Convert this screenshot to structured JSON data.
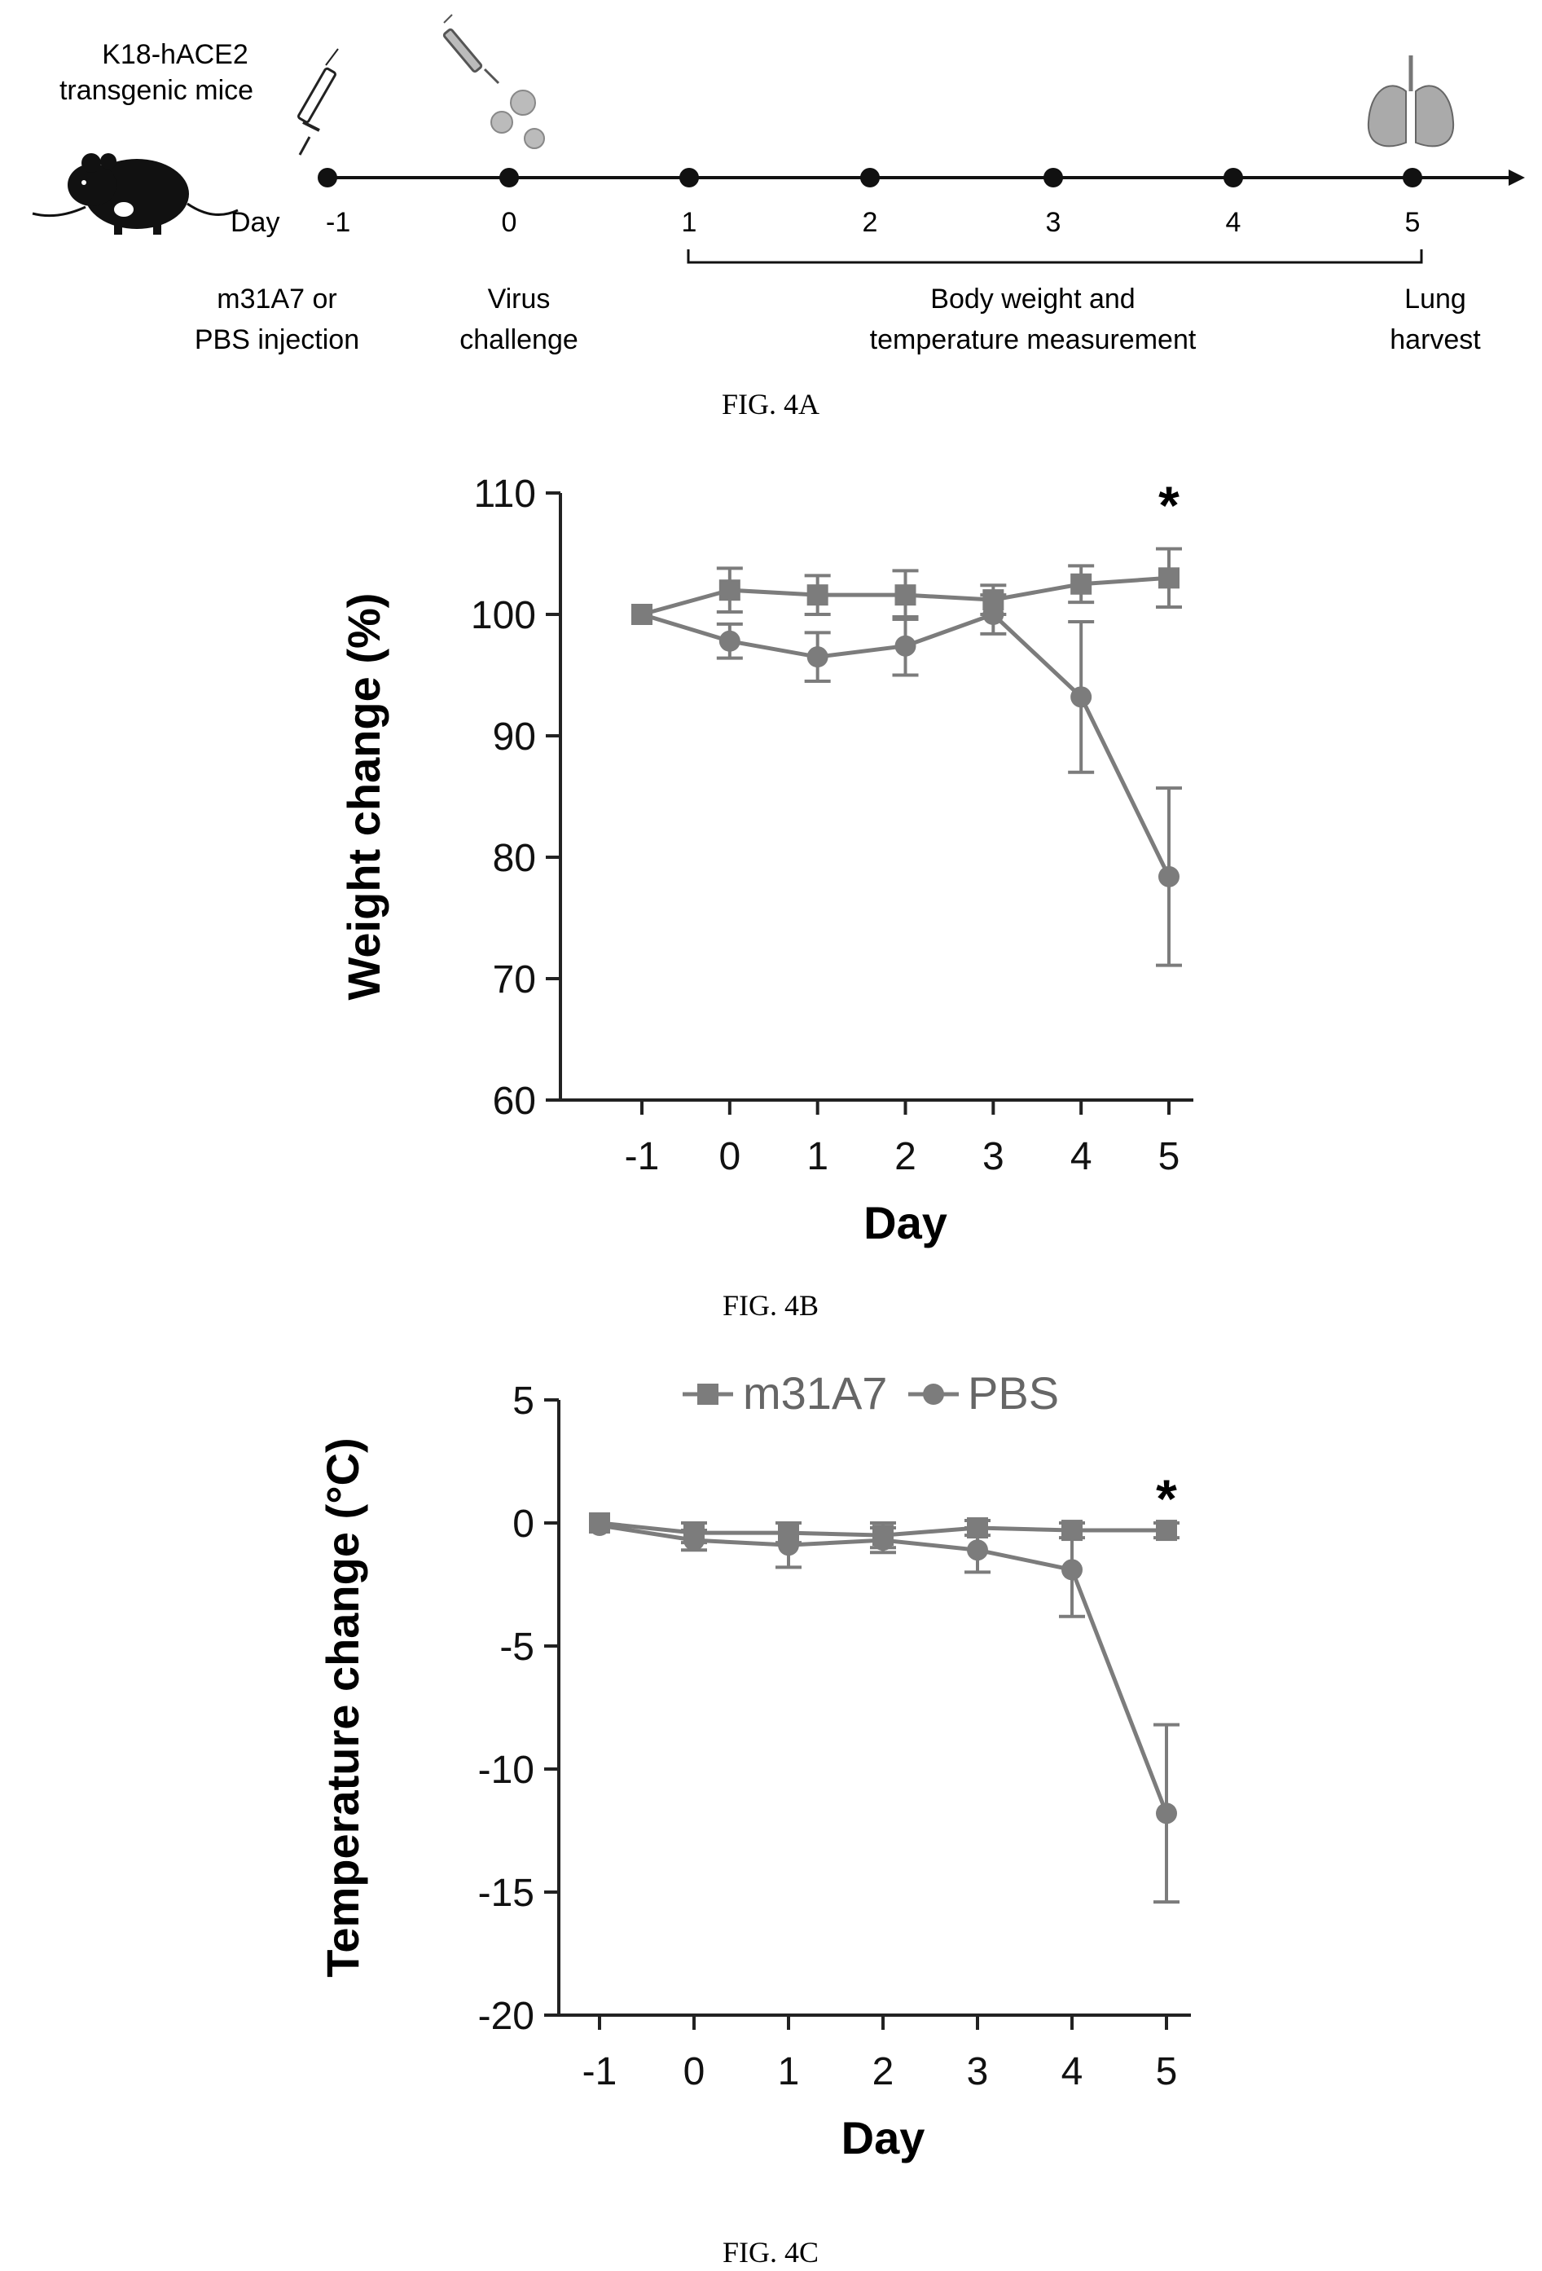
{
  "timeline": {
    "mouse_label": [
      "K18-hACE2",
      "transgenic mice"
    ],
    "day_prefix": "Day",
    "days": [
      "-1",
      "0",
      "1",
      "2",
      "3",
      "4",
      "5"
    ],
    "step_labels": {
      "injection": [
        "m31A7 or",
        "PBS injection"
      ],
      "virus": [
        "Virus",
        "challenge"
      ],
      "measurement": [
        "Body weight and",
        "temperature measurement"
      ],
      "harvest": [
        "Lung",
        "harvest"
      ]
    },
    "icons": [
      "syringe-icon",
      "syringe-icon",
      "virus-icon",
      "mouse-icon",
      "lung-icon"
    ],
    "caption": "FIG. 4A"
  },
  "chart_data": [
    {
      "type": "line",
      "caption": "FIG. 4B",
      "xlabel": "Day",
      "ylabel": "Weight change (%)",
      "x": [
        -1,
        0,
        1,
        2,
        3,
        4,
        5
      ],
      "xticks": [
        "-1",
        "0",
        "1",
        "2",
        "3",
        "4",
        "5"
      ],
      "ylim": [
        60,
        110
      ],
      "yticks": [
        60,
        70,
        80,
        90,
        100,
        110
      ],
      "series": [
        {
          "name": "m31A7",
          "marker": "square",
          "values": [
            100,
            102,
            101.6,
            101.6,
            101.2,
            102.5,
            103
          ],
          "errors": [
            0,
            1.8,
            1.6,
            2.0,
            1.2,
            1.5,
            2.4
          ]
        },
        {
          "name": "PBS",
          "marker": "circle",
          "values": [
            100,
            97.8,
            96.5,
            97.4,
            100,
            93.2,
            78.4
          ],
          "errors": [
            0,
            1.4,
            2.0,
            2.4,
            1.6,
            6.2,
            7.3
          ]
        }
      ],
      "annotation": {
        "text": "*",
        "x": 5
      },
      "legend": "none"
    },
    {
      "type": "line",
      "caption": "FIG. 4C",
      "xlabel": "Day",
      "ylabel": "Temperature change (°C)",
      "x": [
        -1,
        0,
        1,
        2,
        3,
        4,
        5
      ],
      "xticks": [
        "-1",
        "0",
        "1",
        "2",
        "3",
        "4",
        "5"
      ],
      "ylim": [
        -20,
        5
      ],
      "yticks": [
        5,
        0,
        -5,
        -10,
        -15,
        -20
      ],
      "series": [
        {
          "name": "m31A7",
          "marker": "square",
          "values": [
            0,
            -0.4,
            -0.4,
            -0.5,
            -0.2,
            -0.3,
            -0.3
          ],
          "errors": [
            0,
            0.4,
            0.4,
            0.5,
            0.3,
            0.3,
            0.3
          ]
        },
        {
          "name": "PBS",
          "marker": "circle",
          "values": [
            -0.1,
            -0.7,
            -0.9,
            -0.7,
            -1.1,
            -1.9,
            -11.8
          ],
          "errors": [
            0,
            0.4,
            0.9,
            0.5,
            0.9,
            1.9,
            3.6
          ]
        }
      ],
      "annotation": {
        "text": "*",
        "x": 5
      },
      "legend": "top-right"
    }
  ],
  "colors": {
    "series": "#7c7c7c",
    "axis": "#222222",
    "text": "#111111"
  }
}
